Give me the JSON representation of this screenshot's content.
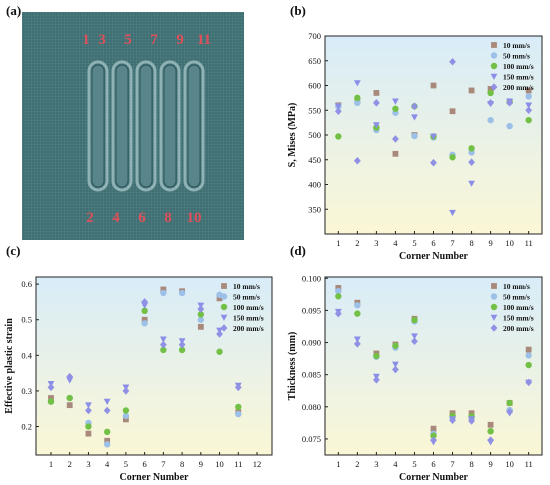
{
  "panels": {
    "a": "(a)",
    "b": "(b)",
    "c": "(c)",
    "d": "(d)"
  },
  "image_a": {
    "top_labels": [
      "1",
      "3",
      "5",
      "7",
      "9",
      "11"
    ],
    "bottom_labels": [
      "2",
      "4",
      "6",
      "8",
      "10"
    ],
    "bg_color": "#3f6f73",
    "channel_color": "#58868a",
    "label_color": "#e0505a"
  },
  "series_styles": [
    {
      "name": "10 mm/s",
      "color": "#a8897b",
      "marker": "square"
    },
    {
      "name": "50 mm/s",
      "color": "#9cc0e8",
      "marker": "circle"
    },
    {
      "name": "100 mm/s",
      "color": "#72c045",
      "marker": "circle"
    },
    {
      "name": "150 mm/s",
      "color": "#8a8ee8",
      "marker": "triangle-down"
    },
    {
      "name": "200 mm/s",
      "color": "#9090e4",
      "marker": "diamond"
    }
  ],
  "chart_data": [
    {
      "id": "b",
      "type": "scatter",
      "xlabel": "Corner Number",
      "ylabel": "S, Mises (MPa)",
      "xlim": [
        0.3,
        11.7
      ],
      "ylim": [
        300,
        700
      ],
      "xticks": [
        1,
        2,
        3,
        4,
        5,
        6,
        7,
        8,
        9,
        10,
        11
      ],
      "yticks": [
        350,
        400,
        450,
        500,
        550,
        600,
        650,
        700
      ],
      "legend_position": "top-right",
      "background": "gradient-lightblue-to-yellow",
      "series": [
        {
          "name": "10 mm/s",
          "values": [
            560,
            570,
            585,
            462,
            500,
            600,
            548,
            590,
            593,
            568,
            590
          ]
        },
        {
          "name": "50 mm/s",
          "values": [
            558,
            565,
            510,
            545,
            498,
            495,
            460,
            465,
            530,
            518,
            578
          ]
        },
        {
          "name": "100 mm/s",
          "values": [
            497,
            575,
            515,
            553,
            558,
            497,
            455,
            473,
            585,
            567,
            530
          ]
        },
        {
          "name": "150 mm/s",
          "values": [
            558,
            605,
            520,
            568,
            536,
            497,
            343,
            402,
            563,
            568,
            560
          ]
        },
        {
          "name": "200 mm/s",
          "values": [
            548,
            448,
            565,
            492,
            558,
            444,
            648,
            445,
            565,
            565,
            550
          ]
        }
      ]
    },
    {
      "id": "c",
      "type": "scatter",
      "xlabel": "Corner Number",
      "ylabel": "Effective plastic strain",
      "xlim": [
        0.2,
        12.8
      ],
      "ylim": [
        0.12,
        0.62
      ],
      "xticks": [
        1,
        2,
        3,
        4,
        5,
        6,
        7,
        8,
        9,
        10,
        11,
        12
      ],
      "yticks": [
        0.2,
        0.3,
        0.4,
        0.5,
        0.6
      ],
      "legend_position": "top-right",
      "background": "gradient-lightblue-to-yellow",
      "series": [
        {
          "name": "10 mm/s",
          "values": [
            0.28,
            0.26,
            0.18,
            0.16,
            0.22,
            0.5,
            0.585,
            0.58,
            0.48,
            0.56,
            0.24
          ]
        },
        {
          "name": "50 mm/s",
          "values": [
            0.27,
            0.28,
            0.21,
            0.15,
            0.23,
            0.49,
            0.575,
            0.575,
            0.5,
            0.57,
            0.235
          ]
        },
        {
          "name": "100 mm/s",
          "values": [
            0.27,
            0.28,
            0.2,
            0.185,
            0.245,
            0.525,
            0.415,
            0.415,
            0.515,
            0.41,
            0.255
          ]
        },
        {
          "name": "150 mm/s",
          "values": [
            0.32,
            0.33,
            0.26,
            0.27,
            0.31,
            0.54,
            0.445,
            0.44,
            0.54,
            0.47,
            0.315
          ]
        },
        {
          "name": "200 mm/s",
          "values": [
            0.31,
            0.34,
            0.245,
            0.245,
            0.3,
            0.55,
            0.43,
            0.43,
            0.53,
            0.46,
            0.31
          ]
        }
      ]
    },
    {
      "id": "d",
      "type": "scatter",
      "xlabel": "Corner Number",
      "ylabel": "Thickness (mm)",
      "xlim": [
        0.3,
        11.7
      ],
      "ylim": [
        0.0725,
        0.1002
      ],
      "xticks": [
        1,
        2,
        3,
        4,
        5,
        6,
        7,
        8,
        9,
        10,
        11
      ],
      "yticks": [
        0.075,
        0.08,
        0.085,
        0.09,
        0.095,
        0.1
      ],
      "ytick_labels": [
        "0.075",
        "0.080",
        "0.085",
        "0.090",
        "0.095",
        "0.100"
      ],
      "legend_position": "top-right",
      "background": "gradient-lightblue-to-yellow",
      "series": [
        {
          "name": "10 mm/s",
          "values": [
            0.0985,
            0.0962,
            0.0883,
            0.0897,
            0.0937,
            0.0766,
            0.079,
            0.079,
            0.0772,
            0.0806,
            0.0889
          ]
        },
        {
          "name": "50 mm/s",
          "values": [
            0.098,
            0.0958,
            0.0878,
            0.0892,
            0.0933,
            0.0758,
            0.0783,
            0.0782,
            0.0762,
            0.0795,
            0.088
          ]
        },
        {
          "name": "100 mm/s",
          "values": [
            0.0972,
            0.0945,
            0.0879,
            0.0895,
            0.0935,
            0.0755,
            0.0786,
            0.0785,
            0.0762,
            0.0806,
            0.0865
          ]
        },
        {
          "name": "150 mm/s",
          "values": [
            0.0948,
            0.0905,
            0.0847,
            0.0866,
            0.091,
            0.0745,
            0.0781,
            0.0781,
            0.0745,
            0.079,
            0.0838
          ]
        },
        {
          "name": "200 mm/s",
          "values": [
            0.0945,
            0.0898,
            0.0842,
            0.0858,
            0.0902,
            0.0748,
            0.0779,
            0.0778,
            0.0748,
            0.0792,
            0.0838
          ]
        }
      ]
    }
  ]
}
